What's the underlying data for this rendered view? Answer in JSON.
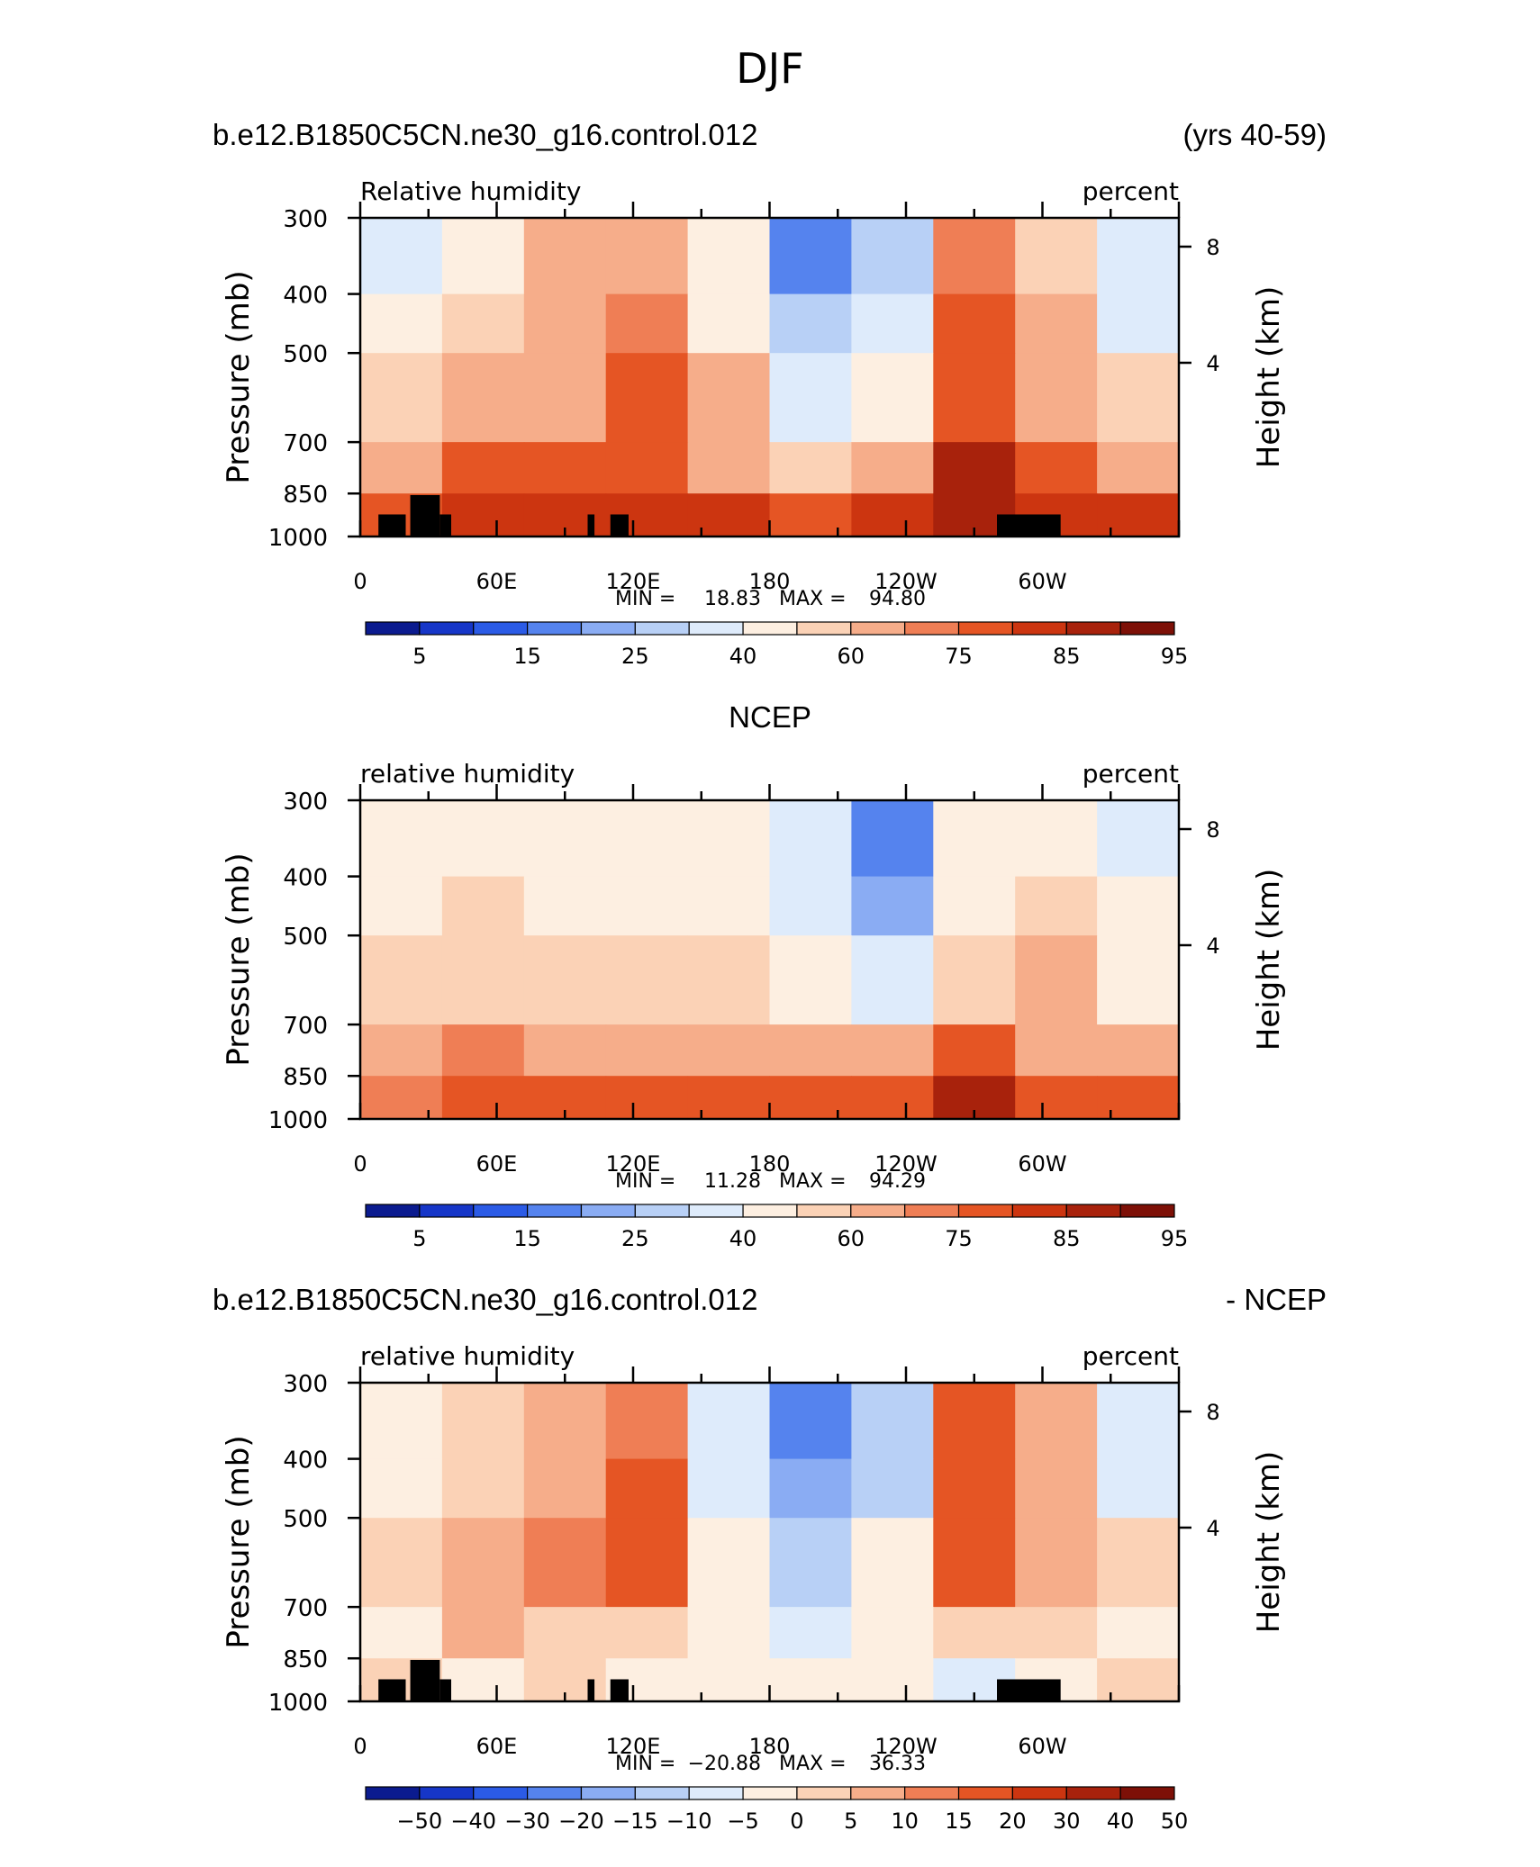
{
  "figure_title": "DJF",
  "ylabel_left": "Pressure (mb)",
  "ylabel_right": "Height (km)",
  "pressure_ticks": [
    "300",
    "400",
    "500",
    "700",
    "850",
    "1000"
  ],
  "height_ticks": [
    "8",
    "4"
  ],
  "lon_ticks": [
    "0",
    "60E",
    "120E",
    "180",
    "120W",
    "60W"
  ],
  "colors": {
    "ramp": [
      "#0b1b8f",
      "#1636c8",
      "#2b5be6",
      "#5583ee",
      "#8aacf3",
      "#b8d0f6",
      "#deebfb",
      "#fdefe1",
      "#fbd2b6",
      "#f6ad8a",
      "#ef7e55",
      "#e55524",
      "#cc3510",
      "#a8220c",
      "#7d1007"
    ],
    "topography": "#000000"
  },
  "chart_data": [
    {
      "type": "heatmap",
      "header_left": "b.e12.B1850C5CN.ne30_g16.control.012",
      "header_center": "",
      "header_right": "(yrs 40-59)",
      "variable": "Relative humidity",
      "units": "percent",
      "stats": {
        "min_label": "MIN =",
        "min": "18.83",
        "max_label": "MAX =",
        "max": "94.80"
      },
      "colorbar_labels": [
        "5",
        "15",
        "25",
        "40",
        "60",
        "75",
        "85",
        "95"
      ],
      "levels": [
        5,
        10,
        15,
        20,
        25,
        30,
        40,
        50,
        60,
        65,
        75,
        80,
        85,
        90,
        95
      ],
      "x": [
        0,
        60,
        120,
        180,
        240,
        300,
        360
      ],
      "y_pressure": [
        300,
        400,
        500,
        700,
        850,
        1000
      ],
      "values": [
        [
          48,
          55,
          68,
          70,
          52,
          22,
          36,
          78,
          62,
          40
        ],
        [
          52,
          62,
          70,
          78,
          58,
          30,
          40,
          80,
          66,
          48
        ],
        [
          62,
          66,
          74,
          80,
          65,
          42,
          52,
          84,
          72,
          60
        ],
        [
          72,
          82,
          80,
          84,
          72,
          60,
          70,
          90,
          80,
          72
        ],
        [
          82,
          88,
          88,
          88,
          86,
          84,
          88,
          92,
          88,
          86
        ]
      ]
    },
    {
      "type": "heatmap",
      "header_left": "",
      "header_center": "NCEP",
      "header_right": "",
      "variable": "relative humidity",
      "units": "percent",
      "stats": {
        "min_label": "MIN =",
        "min": "11.28",
        "max_label": "MAX =",
        "max": "94.29"
      },
      "colorbar_labels": [
        "5",
        "15",
        "25",
        "40",
        "60",
        "75",
        "85",
        "95"
      ],
      "levels": [
        5,
        10,
        15,
        20,
        25,
        30,
        40,
        50,
        60,
        65,
        75,
        80,
        85,
        90,
        95
      ],
      "x": [
        0,
        60,
        120,
        180,
        240,
        300,
        360
      ],
      "y_pressure": [
        300,
        400,
        500,
        700,
        850,
        1000
      ],
      "values": [
        [
          50,
          55,
          55,
          58,
          52,
          40,
          22,
          50,
          58,
          45
        ],
        [
          55,
          60,
          58,
          58,
          55,
          42,
          25,
          55,
          60,
          50
        ],
        [
          62,
          62,
          60,
          60,
          60,
          52,
          45,
          62,
          66,
          58
        ],
        [
          70,
          76,
          68,
          72,
          70,
          68,
          72,
          80,
          74,
          70
        ],
        [
          78,
          82,
          80,
          82,
          80,
          80,
          84,
          90,
          84,
          80
        ]
      ]
    },
    {
      "type": "heatmap",
      "header_left": "b.e12.B1850C5CN.ne30_g16.control.012",
      "header_center": "",
      "header_right": "- NCEP",
      "variable": "relative humidity",
      "units": "percent",
      "stats": {
        "min_label": "MIN =",
        "min": "−20.88",
        "max_label": "MAX =",
        "max": "36.33"
      },
      "colorbar_labels": [
        "−50",
        "−40",
        "−30",
        "−20",
        "−15",
        "−10",
        "−5",
        "0",
        "5",
        "10",
        "15",
        "20",
        "30",
        "40",
        "50"
      ],
      "levels": [
        -50,
        -40,
        -30,
        -20,
        -15,
        -10,
        -5,
        0,
        5,
        10,
        15,
        20,
        30,
        40,
        50
      ],
      "x": [
        0,
        60,
        120,
        180,
        240,
        300,
        360
      ],
      "y_pressure": [
        300,
        400,
        500,
        700,
        850,
        1000
      ],
      "values": [
        [
          0,
          5,
          12,
          18,
          -5,
          -18,
          -8,
          20,
          10,
          -5
        ],
        [
          2,
          8,
          14,
          22,
          -2,
          -15,
          -6,
          22,
          12,
          -2
        ],
        [
          5,
          14,
          16,
          20,
          4,
          -8,
          2,
          20,
          14,
          5
        ],
        [
          2,
          10,
          8,
          6,
          2,
          -5,
          2,
          8,
          6,
          4
        ],
        [
          5,
          4,
          6,
          4,
          2,
          4,
          2,
          -2,
          4,
          6
        ]
      ]
    }
  ]
}
